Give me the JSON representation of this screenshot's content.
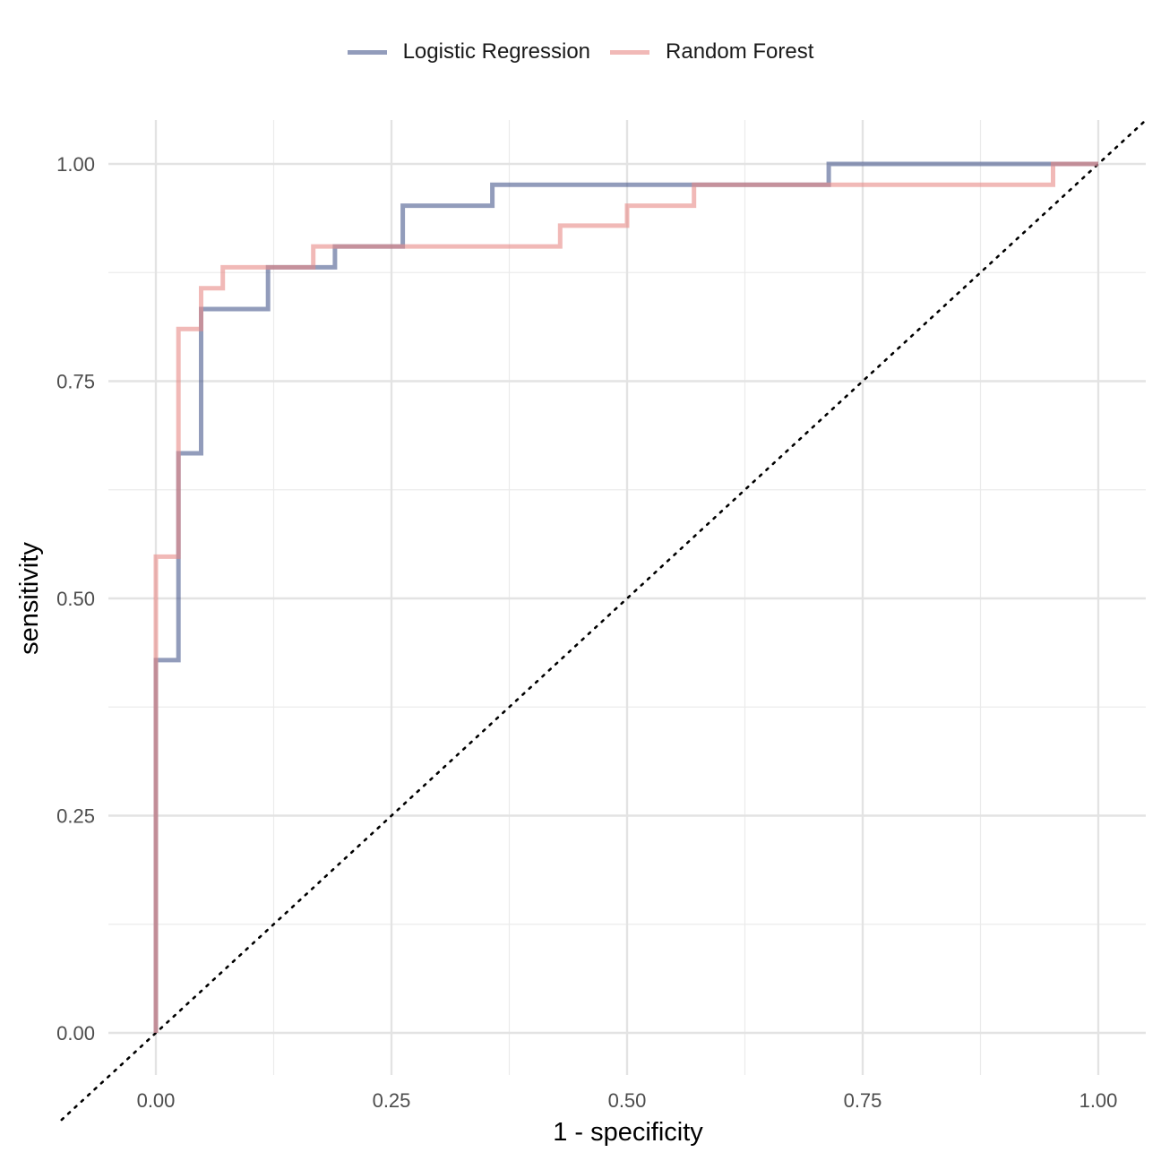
{
  "chart_data": {
    "type": "line",
    "title": "",
    "xlabel": "1 - specificity",
    "ylabel": "sensitivity",
    "xlim": [
      -0.1,
      1.05
    ],
    "ylim": [
      -0.1,
      1.05
    ],
    "x_ticks": [
      "0.00",
      "0.25",
      "0.50",
      "0.75",
      "1.00"
    ],
    "y_ticks": [
      "0.00",
      "0.25",
      "0.50",
      "0.75",
      "1.00"
    ],
    "grid": true,
    "legend_position": "top",
    "reference_line": {
      "style": "dotted",
      "from": [
        -0.1,
        -0.1
      ],
      "to": [
        1.05,
        1.05
      ],
      "color": "#000000"
    },
    "series": [
      {
        "name": "Logistic Regression",
        "color": "#4a5a8e",
        "opacity": 0.6,
        "x": [
          0.0,
          0.0,
          0.024,
          0.024,
          0.048,
          0.048,
          0.119,
          0.119,
          0.19,
          0.19,
          0.262,
          0.262,
          0.357,
          0.357,
          0.714,
          0.714,
          1.0
        ],
        "y": [
          0.0,
          0.429,
          0.429,
          0.667,
          0.667,
          0.833,
          0.833,
          0.881,
          0.881,
          0.905,
          0.905,
          0.952,
          0.952,
          0.976,
          0.976,
          1.0,
          1.0
        ]
      },
      {
        "name": "Random Forest",
        "color": "#e88a87",
        "opacity": 0.6,
        "x": [
          0.0,
          0.0,
          0.024,
          0.024,
          0.048,
          0.048,
          0.071,
          0.071,
          0.167,
          0.167,
          0.429,
          0.429,
          0.5,
          0.5,
          0.571,
          0.571,
          0.952,
          0.952,
          1.0
        ],
        "y": [
          0.0,
          0.548,
          0.548,
          0.81,
          0.81,
          0.857,
          0.857,
          0.881,
          0.881,
          0.905,
          0.905,
          0.929,
          0.929,
          0.952,
          0.952,
          0.976,
          0.976,
          1.0,
          1.0
        ]
      }
    ]
  }
}
